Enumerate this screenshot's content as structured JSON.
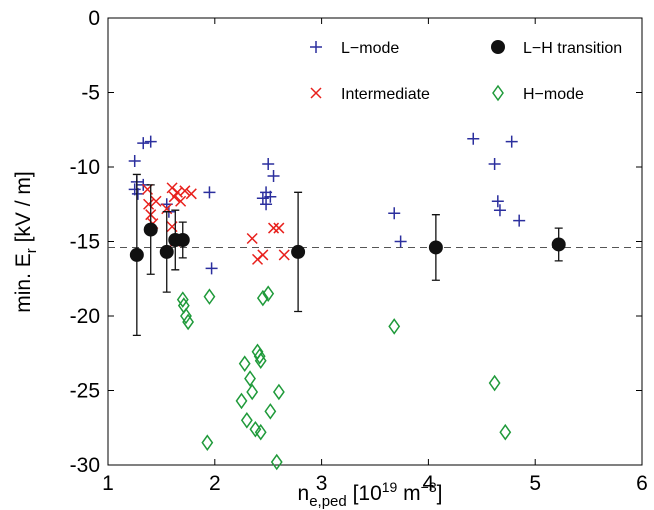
{
  "chart_data": {
    "type": "scatter",
    "xlabel": [
      "n",
      "e,ped",
      " [10",
      "19",
      " m",
      "−3",
      "]"
    ],
    "ylabel": [
      "min. E",
      "r",
      " [kV / m]"
    ],
    "xlim": [
      1,
      6
    ],
    "xticks": [
      1,
      2,
      3,
      4,
      5,
      6
    ],
    "ylim": [
      -30,
      0
    ],
    "yticks": [
      -30,
      -25,
      -20,
      -15,
      -10,
      -5,
      0
    ],
    "hline": -15.4,
    "legend": "top",
    "series": [
      {
        "name": "L−mode",
        "color": "#2b2f9e",
        "marker": "plus",
        "x": [
          1.25,
          1.27,
          1.25,
          1.28,
          1.33,
          1.33,
          1.4,
          1.55,
          1.57,
          1.95,
          1.97,
          2.45,
          2.48,
          2.5,
          2.52,
          2.55,
          2.48,
          3.68,
          3.74,
          4.42,
          4.62,
          4.65,
          4.67,
          4.78,
          4.85
        ],
        "values": [
          -9.6,
          -11.0,
          -11.5,
          -11.8,
          -11.2,
          -8.4,
          -8.3,
          -12.5,
          -13.0,
          -11.7,
          -16.8,
          -12.1,
          -11.7,
          -9.8,
          -12.0,
          -10.6,
          -12.5,
          -13.1,
          -15.0,
          -8.1,
          -9.8,
          -12.3,
          -12.9,
          -8.3,
          -13.6
        ]
      },
      {
        "name": "Intermediate",
        "color": "#e8201c",
        "marker": "cross",
        "x": [
          1.37,
          1.38,
          1.4,
          1.42,
          1.45,
          1.6,
          1.62,
          1.65,
          1.68,
          1.72,
          1.78,
          1.6,
          1.63,
          2.35,
          2.4,
          2.45,
          2.55,
          2.6,
          2.65,
          1.55
        ],
        "values": [
          -11.5,
          -12.5,
          -13.2,
          -13.8,
          -12.3,
          -11.4,
          -12.0,
          -11.7,
          -12.3,
          -11.6,
          -11.8,
          -14.0,
          -15.0,
          -14.8,
          -16.2,
          -15.9,
          -14.1,
          -14.1,
          -15.9,
          -12.8
        ]
      },
      {
        "name": "L−H transition",
        "color": "#111111",
        "marker": "dot",
        "x": [
          1.27,
          1.4,
          1.55,
          1.63,
          1.7,
          2.78,
          4.07,
          5.22
        ],
        "values": [
          -15.9,
          -14.2,
          -15.7,
          -14.9,
          -14.9,
          -15.7,
          -15.4,
          -15.2
        ],
        "errors": [
          5.4,
          3.0,
          2.7,
          2.0,
          1.2,
          4.0,
          2.2,
          1.1
        ]
      },
      {
        "name": "H−mode",
        "color": "#1f9a3a",
        "marker": "diamond",
        "x": [
          1.7,
          1.71,
          1.73,
          1.75,
          1.95,
          1.93,
          2.25,
          2.28,
          2.3,
          2.33,
          2.35,
          2.38,
          2.4,
          2.42,
          2.43,
          2.45,
          2.5,
          2.52,
          2.58,
          2.6,
          3.68,
          4.62,
          4.72,
          2.43
        ],
        "values": [
          -18.9,
          -19.3,
          -20.0,
          -20.4,
          -18.7,
          -28.5,
          -25.7,
          -23.2,
          -27.0,
          -24.2,
          -25.1,
          -27.6,
          -22.4,
          -22.7,
          -27.8,
          -18.8,
          -18.5,
          -26.4,
          -29.8,
          -25.1,
          -20.7,
          -24.5,
          -27.8,
          -23.0
        ]
      }
    ]
  }
}
